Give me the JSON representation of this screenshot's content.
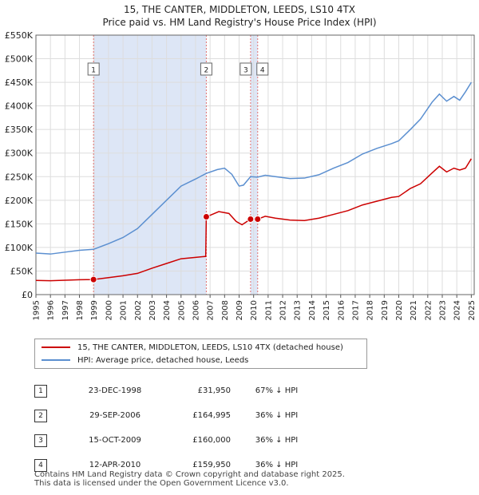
{
  "title_line1": "15, THE CANTER, MIDDLETON, LEEDS, LS10 4TX",
  "title_line2": "Price paid vs. HM Land Registry's House Price Index (HPI)",
  "chart_data": {
    "type": "line",
    "x_range": [
      1995,
      2025.2
    ],
    "ylim": [
      0,
      550000
    ],
    "y_ticks": [
      0,
      50000,
      100000,
      150000,
      200000,
      250000,
      300000,
      350000,
      400000,
      450000,
      500000,
      550000
    ],
    "y_tick_labels": [
      "£0",
      "£50K",
      "£100K",
      "£150K",
      "£200K",
      "£250K",
      "£300K",
      "£350K",
      "£400K",
      "£450K",
      "£500K",
      "£550K"
    ],
    "x_ticks": [
      1995,
      1996,
      1997,
      1998,
      1999,
      2000,
      2001,
      2002,
      2003,
      2004,
      2005,
      2006,
      2007,
      2008,
      2009,
      2010,
      2011,
      2012,
      2013,
      2014,
      2015,
      2016,
      2017,
      2018,
      2019,
      2020,
      2021,
      2022,
      2023,
      2024,
      2025
    ],
    "grid": true,
    "series": [
      {
        "name": "15, THE CANTER, MIDDLETON, LEEDS, LS10 4TX (detached house)",
        "color": "#cc0000",
        "points": [
          [
            1995.0,
            30000
          ],
          [
            1996.0,
            29500
          ],
          [
            1997.0,
            30500
          ],
          [
            1998.0,
            31500
          ],
          [
            1998.97,
            31950
          ],
          [
            2000.0,
            36000
          ],
          [
            2001.0,
            40000
          ],
          [
            2002.0,
            45000
          ],
          [
            2003.0,
            56000
          ],
          [
            2004.0,
            66000
          ],
          [
            2005.0,
            76000
          ],
          [
            2006.0,
            79000
          ],
          [
            2006.7,
            81000
          ],
          [
            2006.74,
            164995
          ],
          [
            2007.0,
            168000
          ],
          [
            2007.6,
            176000
          ],
          [
            2008.3,
            172000
          ],
          [
            2008.8,
            155000
          ],
          [
            2009.2,
            148000
          ],
          [
            2009.79,
            160000
          ],
          [
            2010.28,
            159950
          ],
          [
            2010.8,
            166000
          ],
          [
            2011.5,
            162000
          ],
          [
            2012.5,
            158000
          ],
          [
            2013.5,
            157000
          ],
          [
            2014.5,
            162000
          ],
          [
            2015.5,
            170000
          ],
          [
            2016.5,
            178000
          ],
          [
            2017.5,
            190000
          ],
          [
            2018.5,
            198000
          ],
          [
            2019.5,
            206000
          ],
          [
            2020.0,
            208000
          ],
          [
            2020.8,
            225000
          ],
          [
            2021.5,
            235000
          ],
          [
            2022.3,
            258000
          ],
          [
            2022.8,
            272000
          ],
          [
            2023.3,
            260000
          ],
          [
            2023.8,
            268000
          ],
          [
            2024.2,
            264000
          ],
          [
            2024.6,
            268000
          ],
          [
            2025.0,
            288000
          ]
        ]
      },
      {
        "name": "HPI: Average price, detached house, Leeds",
        "color": "#5b8fd0",
        "points": [
          [
            1995.0,
            88000
          ],
          [
            1996.0,
            86000
          ],
          [
            1997.0,
            90000
          ],
          [
            1998.0,
            94000
          ],
          [
            1998.97,
            96000
          ],
          [
            2000.0,
            108000
          ],
          [
            2001.0,
            121000
          ],
          [
            2002.0,
            140000
          ],
          [
            2003.0,
            170000
          ],
          [
            2004.0,
            200000
          ],
          [
            2005.0,
            230000
          ],
          [
            2006.0,
            245000
          ],
          [
            2006.74,
            257000
          ],
          [
            2007.5,
            265000
          ],
          [
            2008.0,
            268000
          ],
          [
            2008.5,
            255000
          ],
          [
            2009.0,
            230000
          ],
          [
            2009.3,
            232000
          ],
          [
            2009.79,
            250000
          ],
          [
            2010.28,
            249000
          ],
          [
            2010.8,
            253000
          ],
          [
            2011.5,
            250000
          ],
          [
            2012.5,
            246000
          ],
          [
            2013.5,
            247000
          ],
          [
            2014.5,
            254000
          ],
          [
            2015.5,
            268000
          ],
          [
            2016.5,
            280000
          ],
          [
            2017.5,
            298000
          ],
          [
            2018.5,
            310000
          ],
          [
            2019.5,
            320000
          ],
          [
            2020.0,
            326000
          ],
          [
            2020.8,
            350000
          ],
          [
            2021.5,
            372000
          ],
          [
            2022.3,
            408000
          ],
          [
            2022.8,
            425000
          ],
          [
            2023.3,
            410000
          ],
          [
            2023.8,
            420000
          ],
          [
            2024.2,
            412000
          ],
          [
            2024.6,
            430000
          ],
          [
            2025.0,
            450000
          ]
        ]
      }
    ],
    "sales": [
      {
        "label": "1",
        "x": 1998.97,
        "price": 31950
      },
      {
        "label": "2",
        "x": 2006.74,
        "price": 164995
      },
      {
        "label": "3",
        "x": 2009.79,
        "price": 160000
      },
      {
        "label": "4",
        "x": 2010.28,
        "price": 159950
      }
    ],
    "shaded_spans": [
      [
        1998.97,
        2006.74
      ],
      [
        2009.79,
        2010.28
      ]
    ]
  },
  "legend": {
    "property_label": "15, THE CANTER, MIDDLETON, LEEDS, LS10 4TX (detached house)",
    "hpi_label": "HPI: Average price, detached house, Leeds",
    "property_color": "#cc0000",
    "hpi_color": "#5b8fd0"
  },
  "transactions": [
    {
      "num": "1",
      "date": "23-DEC-1998",
      "price": "£31,950",
      "hpi": "67% ↓ HPI"
    },
    {
      "num": "2",
      "date": "29-SEP-2006",
      "price": "£164,995",
      "hpi": "36% ↓ HPI"
    },
    {
      "num": "3",
      "date": "15-OCT-2009",
      "price": "£160,000",
      "hpi": "36% ↓ HPI"
    },
    {
      "num": "4",
      "date": "12-APR-2010",
      "price": "£159,950",
      "hpi": "36% ↓ HPI"
    }
  ],
  "footer_line1": "Contains HM Land Registry data © Crown copyright and database right 2025.",
  "footer_line2": "This data is licensed under the Open Government Licence v3.0."
}
